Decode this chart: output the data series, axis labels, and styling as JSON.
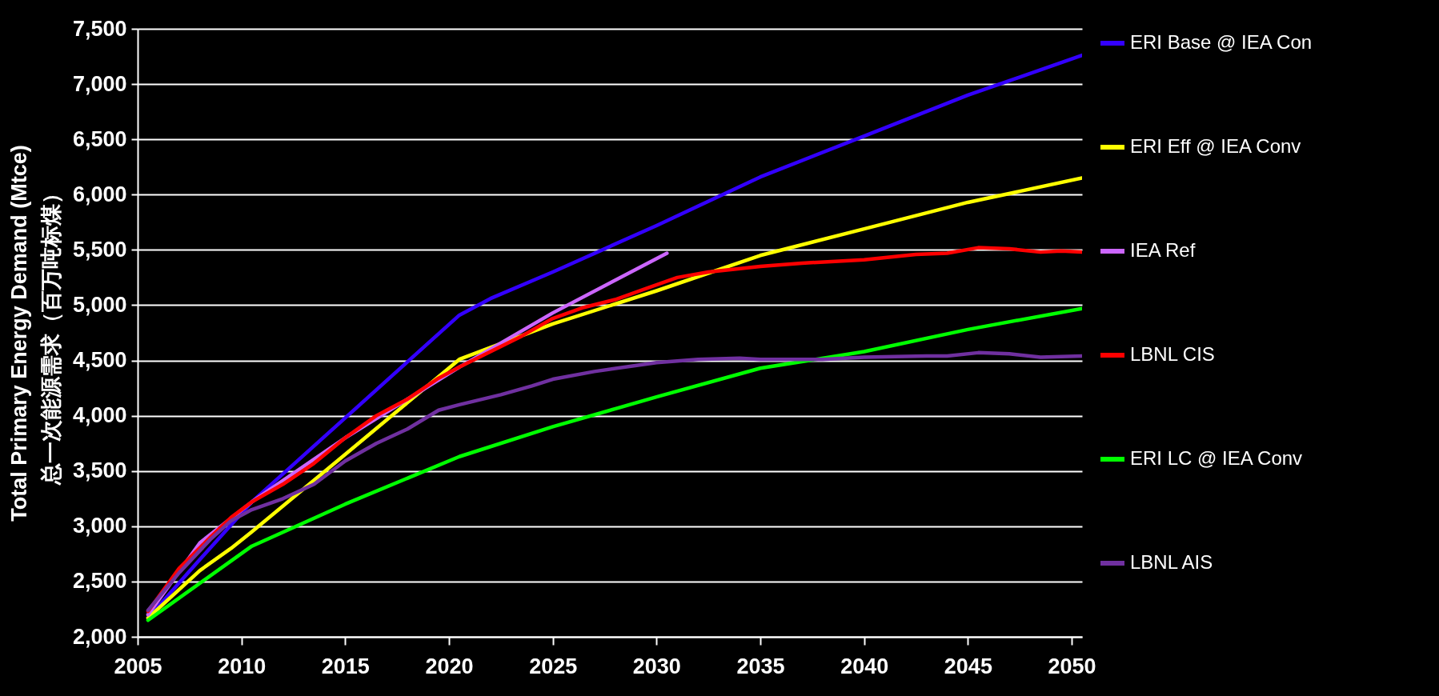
{
  "chart_data": {
    "type": "line",
    "ylabel": "Total Primary Energy Demand (Mtce)\n总一次能源需求（百万吨标煤）",
    "xlim": [
      2005,
      2050.5
    ],
    "xticks": [
      2005,
      2010,
      2015,
      2020,
      2025,
      2030,
      2035,
      2040,
      2045,
      2050
    ],
    "ylim": [
      2000,
      7500
    ],
    "yticks": [
      {
        "value": 2000,
        "label": "2,000"
      },
      {
        "value": 2500,
        "label": "2,500"
      },
      {
        "value": 3000,
        "label": "3,000"
      },
      {
        "value": 3500,
        "label": "3,500"
      },
      {
        "value": 4000,
        "label": "4,000"
      },
      {
        "value": 4500,
        "label": "4,500"
      },
      {
        "value": 5000,
        "label": "5,000"
      },
      {
        "value": 5500,
        "label": "5,500"
      },
      {
        "value": 6000,
        "label": "6,000"
      },
      {
        "value": 6500,
        "label": "6,500"
      },
      {
        "value": 7000,
        "label": "7,000"
      },
      {
        "value": 7500,
        "label": "7,500"
      }
    ],
    "grid": "y",
    "legend": "right",
    "line_style": "solid",
    "marker": "none",
    "series": [
      {
        "name": "ERI Base  @ IEA Con",
        "color": "#3300ff",
        "x": [
          2005.5,
          2008,
          2010.5,
          2015,
          2020.5,
          2022,
          2025,
          2030,
          2035,
          2040,
          2045,
          2050.5
        ],
        "values": [
          2170,
          2700,
          3220,
          3980,
          4910,
          5060,
          5300,
          5720,
          6160,
          6530,
          6900,
          7260
        ]
      },
      {
        "name": "ERI Eff  @ IEA Conv",
        "color": "#ffff00",
        "x": [
          2005.5,
          2008,
          2009.5,
          2010.5,
          2015,
          2020.5,
          2025,
          2030,
          2035,
          2040,
          2045,
          2050.5
        ],
        "values": [
          2170,
          2600,
          2800,
          2950,
          3650,
          4510,
          4830,
          5130,
          5450,
          5690,
          5930,
          6150
        ]
      },
      {
        "name": "IEA Ref",
        "color": "#cc66ff",
        "x": [
          2005.5,
          2008,
          2010.5,
          2015,
          2020.5,
          2025,
          2030.5
        ],
        "values": [
          2200,
          2850,
          3220,
          3800,
          4440,
          4930,
          5470
        ]
      },
      {
        "name": "LBNL CIS",
        "color": "#ff0000",
        "x": [
          2005.5,
          2007,
          2008.5,
          2009.5,
          2010.5,
          2012,
          2013.5,
          2015,
          2016.5,
          2018,
          2019.5,
          2020.5,
          2022,
          2023.5,
          2025,
          2026.5,
          2028,
          2029.5,
          2031,
          2032.5,
          2035,
          2037,
          2040,
          2042.5,
          2044,
          2045.5,
          2047,
          2048.5,
          2049.5,
          2050.5
        ],
        "values": [
          2230,
          2620,
          2900,
          3080,
          3220,
          3380,
          3570,
          3800,
          4000,
          4150,
          4340,
          4440,
          4580,
          4720,
          4880,
          4980,
          5050,
          5150,
          5250,
          5300,
          5350,
          5380,
          5410,
          5460,
          5470,
          5520,
          5510,
          5480,
          5490,
          5480
        ]
      },
      {
        "name": "ERI LC  @ IEA Conv",
        "color": "#00ff00",
        "x": [
          2005.5,
          2010.5,
          2015,
          2020.5,
          2025,
          2030,
          2035,
          2040,
          2045,
          2050.5
        ],
        "values": [
          2150,
          2820,
          3200,
          3630,
          3900,
          4170,
          4430,
          4580,
          4780,
          4970
        ]
      },
      {
        "name": "LBNL AIS",
        "color": "#7030a0",
        "x": [
          2005.5,
          2007,
          2008.5,
          2009.5,
          2010.5,
          2012,
          2013.5,
          2015,
          2016.5,
          2018,
          2019.5,
          2020.5,
          2022.5,
          2024,
          2025,
          2027,
          2030,
          2032,
          2034,
          2035,
          2038,
          2040,
          2043,
          2044,
          2045.5,
          2047,
          2048.5,
          2050.5
        ],
        "values": [
          2240,
          2580,
          2880,
          3050,
          3150,
          3250,
          3380,
          3590,
          3750,
          3880,
          4050,
          4100,
          4190,
          4270,
          4330,
          4400,
          4480,
          4510,
          4520,
          4510,
          4510,
          4530,
          4540,
          4540,
          4570,
          4560,
          4530,
          4540
        ]
      }
    ]
  }
}
